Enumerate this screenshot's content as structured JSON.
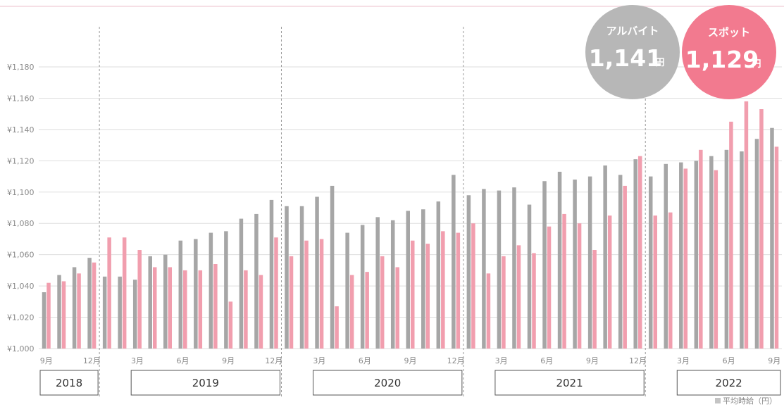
{
  "chart_data": {
    "type": "bar",
    "ylim": [
      1000,
      1190
    ],
    "yticks": [
      1000,
      1020,
      1040,
      1060,
      1080,
      1100,
      1120,
      1140,
      1160,
      1180
    ],
    "ytick_labels": [
      "¥1,000",
      "¥1,020",
      "¥1,040",
      "¥1,060",
      "¥1,080",
      "¥1,100",
      "¥1,120",
      "¥1,140",
      "¥1,160",
      "¥1,180"
    ],
    "grid": true,
    "months": [
      "2018-09",
      "2018-10",
      "2018-11",
      "2018-12",
      "2019-01",
      "2019-02",
      "2019-03",
      "2019-04",
      "2019-05",
      "2019-06",
      "2019-07",
      "2019-08",
      "2019-09",
      "2019-10",
      "2019-11",
      "2019-12",
      "2020-01",
      "2020-02",
      "2020-03",
      "2020-04",
      "2020-05",
      "2020-06",
      "2020-07",
      "2020-08",
      "2020-09",
      "2020-10",
      "2020-11",
      "2020-12",
      "2021-01",
      "2021-02",
      "2021-03",
      "2021-04",
      "2021-05",
      "2021-06",
      "2021-07",
      "2021-08",
      "2021-09",
      "2021-10",
      "2021-11",
      "2021-12",
      "2022-01",
      "2022-02",
      "2022-03",
      "2022-04",
      "2022-05",
      "2022-06",
      "2022-07",
      "2022-08",
      "2022-09"
    ],
    "xtick_labels": [
      {
        "index": 0,
        "label": "9月"
      },
      {
        "index": 3,
        "label": "12月"
      },
      {
        "index": 6,
        "label": "3月"
      },
      {
        "index": 9,
        "label": "6月"
      },
      {
        "index": 12,
        "label": "9月"
      },
      {
        "index": 15,
        "label": "12月"
      },
      {
        "index": 18,
        "label": "3月"
      },
      {
        "index": 21,
        "label": "6月"
      },
      {
        "index": 24,
        "label": "9月"
      },
      {
        "index": 27,
        "label": "12月"
      },
      {
        "index": 30,
        "label": "3月"
      },
      {
        "index": 33,
        "label": "6月"
      },
      {
        "index": 36,
        "label": "9月"
      },
      {
        "index": 39,
        "label": "12月"
      },
      {
        "index": 42,
        "label": "3月"
      },
      {
        "index": 45,
        "label": "6月"
      },
      {
        "index": 48,
        "label": "9月"
      }
    ],
    "year_boundaries_after_index": [
      3,
      15,
      27,
      39
    ],
    "years": [
      {
        "label": "2018",
        "from": 0,
        "to": 3
      },
      {
        "label": "2019",
        "from": 6,
        "to": 15
      },
      {
        "label": "2020",
        "from": 18,
        "to": 27
      },
      {
        "label": "2021",
        "from": 30,
        "to": 39
      },
      {
        "label": "2022",
        "from": 42,
        "to": 48
      }
    ],
    "series": [
      {
        "name": "アルバイト",
        "color": "#a6a6a6",
        "values": [
          1036,
          1047,
          1052,
          1058,
          1046,
          1046,
          1044,
          1059,
          1060,
          1069,
          1070,
          1074,
          1075,
          1083,
          1086,
          1095,
          1091,
          1091,
          1097,
          1104,
          1074,
          1079,
          1084,
          1082,
          1088,
          1089,
          1094,
          1111,
          1098,
          1102,
          1101,
          1103,
          1092,
          1107,
          1113,
          1108,
          1110,
          1117,
          1111,
          1121,
          1110,
          1118,
          1119,
          1120,
          1123,
          1127,
          1126,
          1134,
          1141
        ]
      },
      {
        "name": "スポット",
        "color": "#f19eae",
        "values": [
          1042,
          1043,
          1048,
          1055,
          1071,
          1071,
          1063,
          1052,
          1052,
          1050,
          1050,
          1054,
          1030,
          1050,
          1047,
          1071,
          1059,
          1069,
          1070,
          1027,
          1047,
          1049,
          1059,
          1052,
          1069,
          1067,
          1075,
          1074,
          1080,
          1048,
          1059,
          1066,
          1061,
          1078,
          1086,
          1080,
          1063,
          1085,
          1104,
          1123,
          1085,
          1087,
          1115,
          1127,
          1114,
          1145,
          1158,
          1153,
          1129
        ]
      }
    ],
    "footnote": "平均時給（円）"
  },
  "badges": [
    {
      "title": "アルバイト",
      "value": "1,141",
      "unit": "円",
      "color": "#b7b7b7"
    },
    {
      "title": "スポット",
      "value": "1,129",
      "unit": "円",
      "color": "#f27a8f"
    }
  ]
}
